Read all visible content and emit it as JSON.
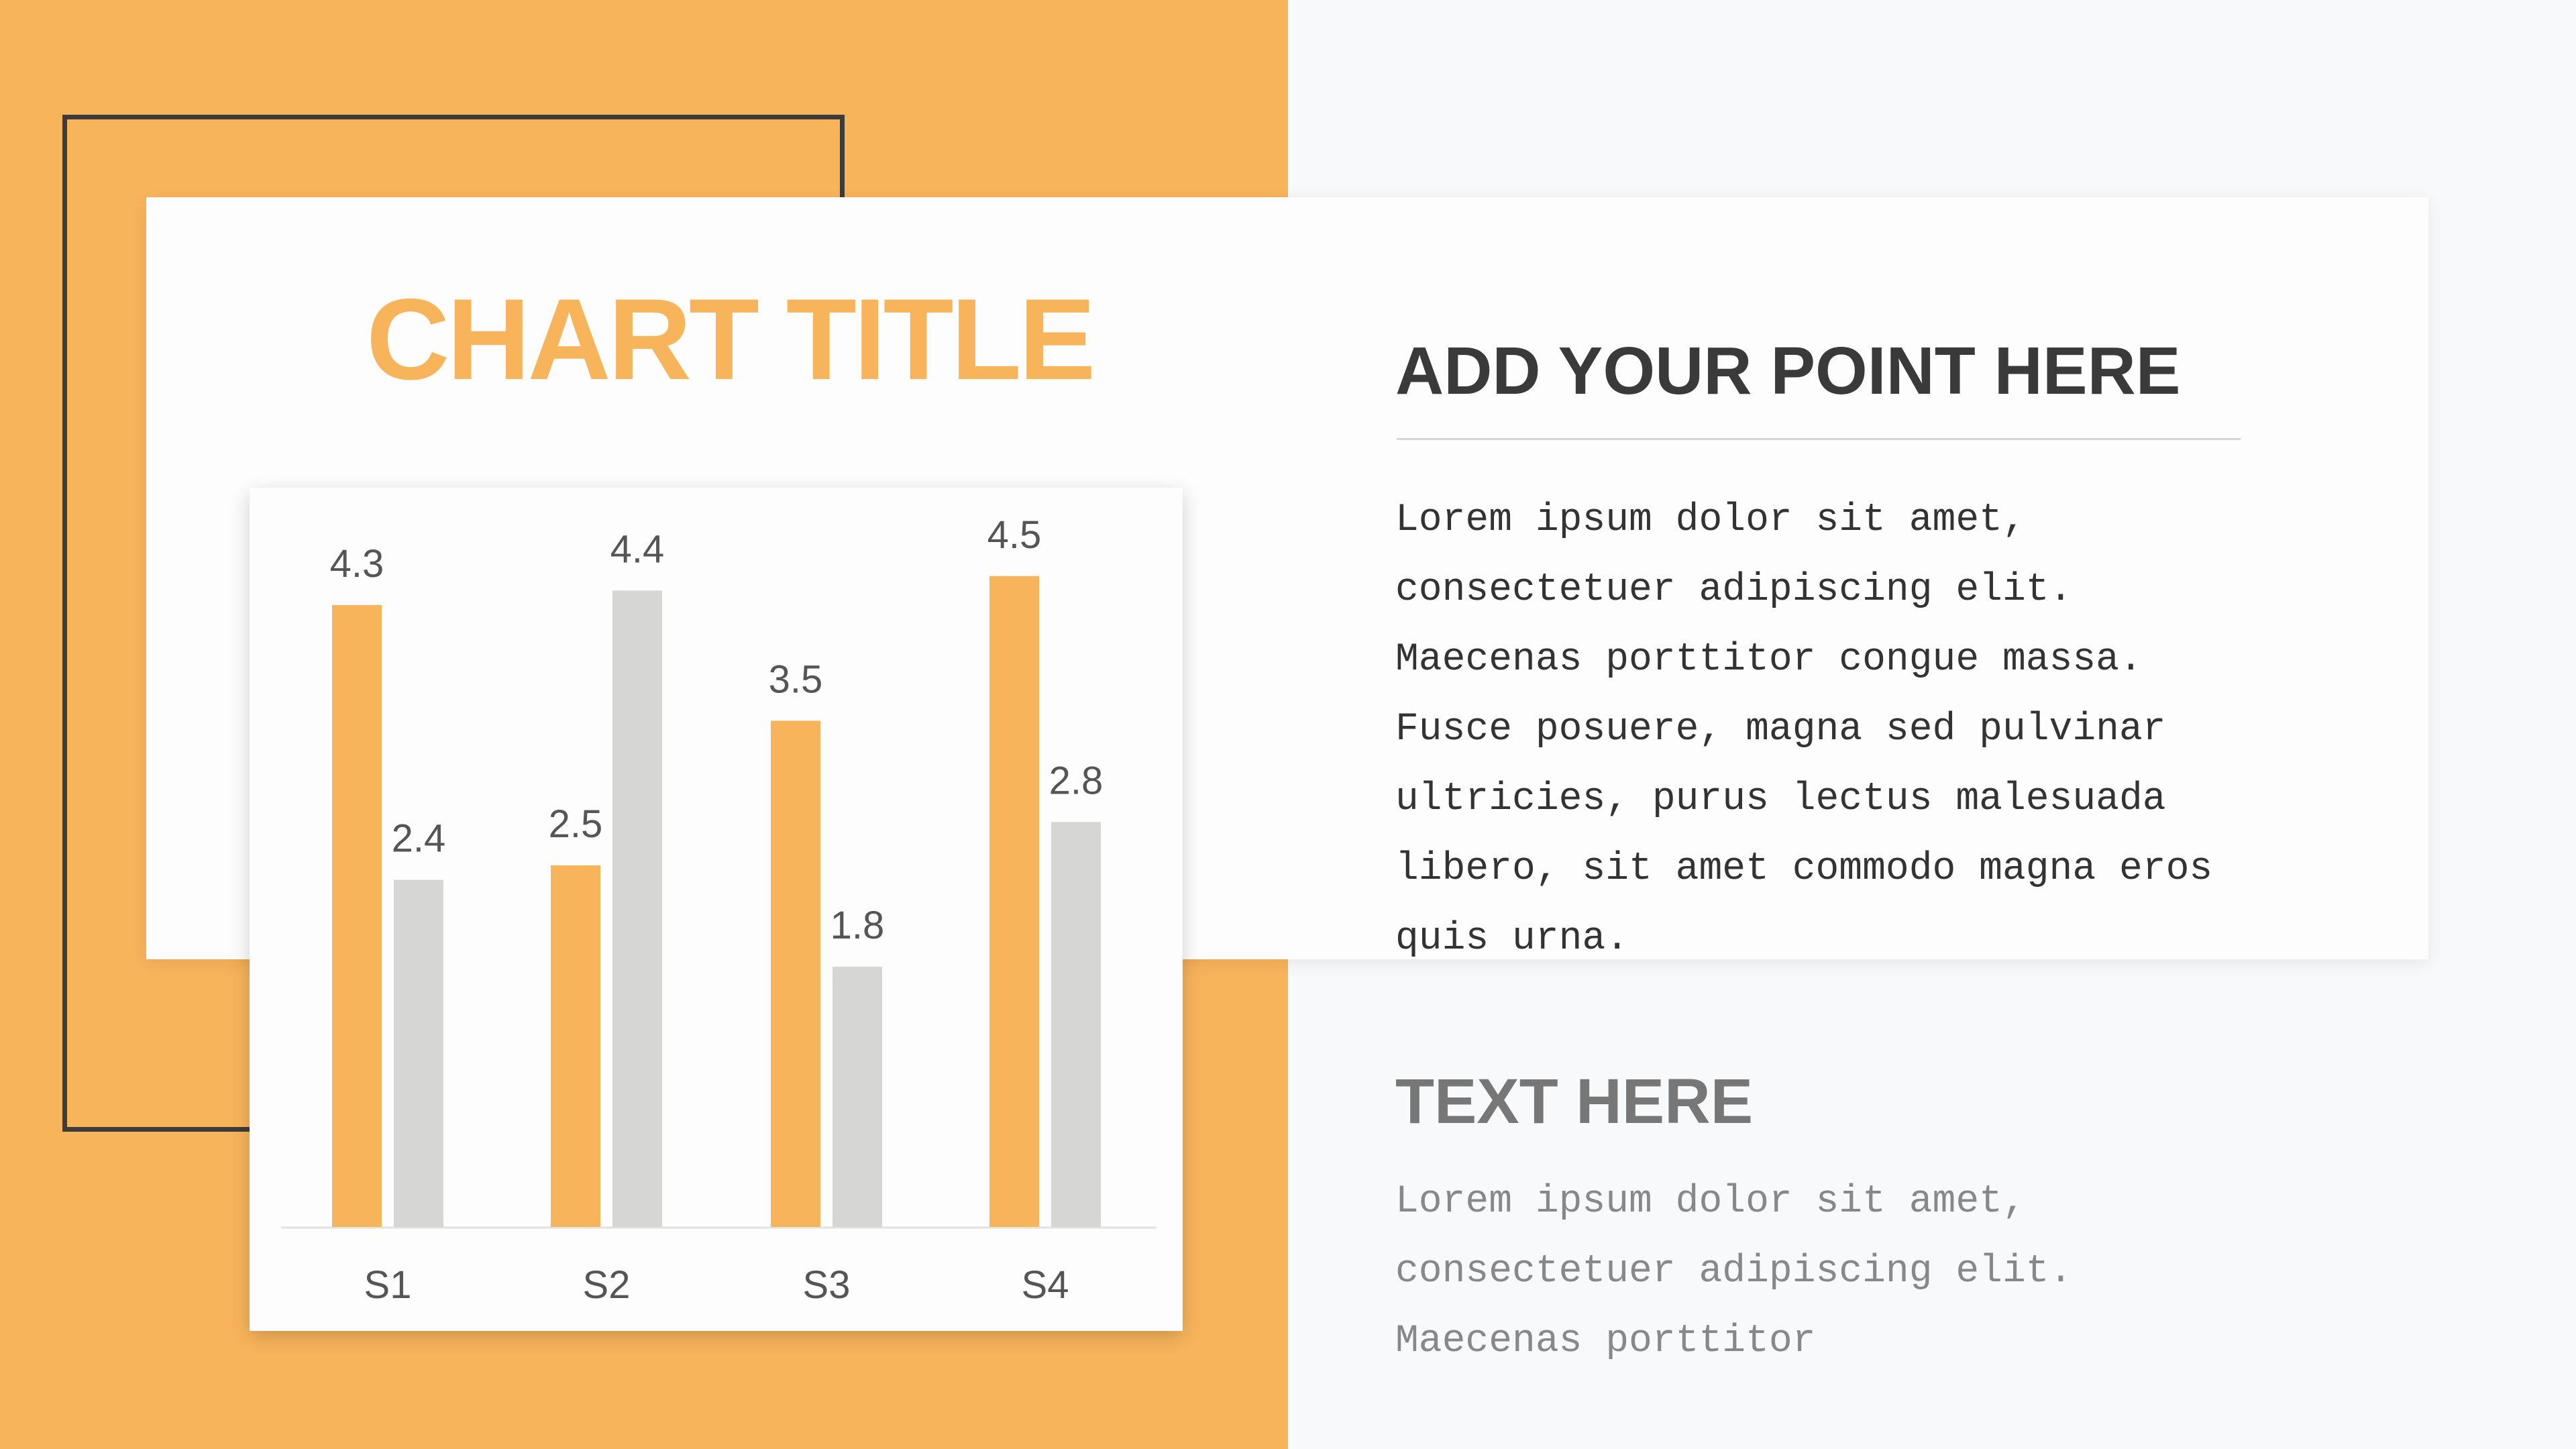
{
  "colors": {
    "orange": "#F8B45B",
    "gray": "#D6D7D5",
    "outline": "#3c3c3c"
  },
  "chart_data": {
    "type": "bar",
    "title": "CHART TITLE",
    "categories": [
      "S1",
      "S2",
      "S3",
      "S4"
    ],
    "series": [
      {
        "values": [
          4.3,
          2.5,
          3.5,
          4.5
        ],
        "color": "#F8B45B"
      },
      {
        "values": [
          2.4,
          4.4,
          1.8,
          2.8
        ],
        "color": "#D6D7D5"
      }
    ],
    "xlabel": "",
    "ylabel": "",
    "ylim": [
      0,
      5
    ],
    "grid": false,
    "data_labels": true,
    "legend": "none"
  },
  "point": {
    "heading": "ADD YOUR POINT HERE",
    "lines": [
      "Lorem ipsum dolor sit amet,",
      "consectetuer adipiscing elit.",
      "Maecenas porttitor congue massa.",
      "Fusce posuere, magna sed pulvinar",
      "ultricies, purus lectus malesuada",
      "libero, sit amet commodo magna eros",
      "quis urna."
    ]
  },
  "text": {
    "heading": "TEXT HERE",
    "lines": [
      "Lorem ipsum dolor sit amet,",
      "consectetuer adipiscing elit.",
      "Maecenas porttitor"
    ]
  }
}
